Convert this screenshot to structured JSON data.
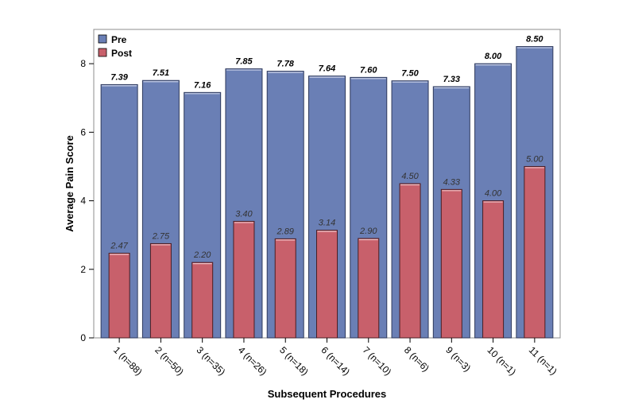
{
  "chart_data": {
    "type": "bar",
    "title": "",
    "xlabel": "Subsequent Procedures",
    "ylabel": "Average Pain Score",
    "ylim": [
      0,
      9
    ],
    "yticks": [
      0,
      2,
      4,
      6,
      8
    ],
    "grid": false,
    "legend_position": "top-left",
    "categories": [
      "1 (n=88)",
      "2 (n=50)",
      "3 (n=35)",
      "4 (n=26)",
      "5 (n=18)",
      "6 (n=14)",
      "7 (n=10)",
      "8 (n=6)",
      "9 (n=3)",
      "10 (n=1)",
      "11 (n=1)"
    ],
    "series": [
      {
        "name": "Pre",
        "color": "#6a7fb5",
        "values": [
          7.39,
          7.51,
          7.16,
          7.85,
          7.78,
          7.64,
          7.6,
          7.5,
          7.33,
          8.0,
          8.5
        ],
        "labels": [
          "7.39",
          "7.51",
          "7.16",
          "7.85",
          "7.78",
          "7.64",
          "7.60",
          "7.50",
          "7.33",
          "8.00",
          "8.50"
        ]
      },
      {
        "name": "Post",
        "color": "#c8606b",
        "values": [
          2.47,
          2.75,
          2.2,
          3.4,
          2.89,
          3.14,
          2.9,
          4.5,
          4.33,
          4.0,
          5.0
        ],
        "labels": [
          "2.47",
          "2.75",
          "2.20",
          "3.40",
          "2.89",
          "3.14",
          "2.90",
          "4.50",
          "4.33",
          "4.00",
          "5.00"
        ]
      }
    ]
  }
}
